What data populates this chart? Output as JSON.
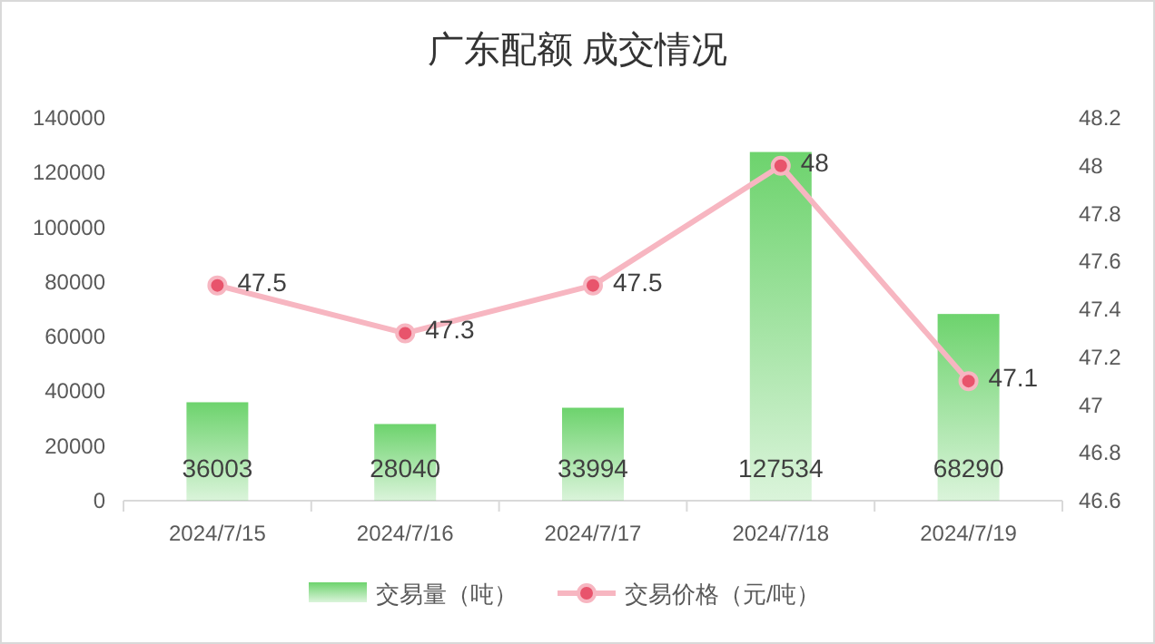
{
  "chart_data": {
    "type": "bar",
    "title": "广东配额 成交情况",
    "categories": [
      "2024/7/15",
      "2024/7/16",
      "2024/7/17",
      "2024/7/18",
      "2024/7/19"
    ],
    "series": [
      {
        "name": "交易量（吨）",
        "color": "#6dd36d",
        "values": [
          36003,
          28040,
          33994,
          127534,
          68290
        ]
      },
      {
        "name": "交易价格（元/吨）",
        "type": "line",
        "axis": "y2",
        "color": "#f7b6c1",
        "values": [
          47.5,
          47.3,
          47.5,
          48,
          47.1
        ]
      }
    ],
    "ylim": [
      0,
      140000
    ],
    "yticks": [
      0,
      20000,
      40000,
      60000,
      80000,
      100000,
      120000,
      140000
    ],
    "y2lim": [
      46.6,
      48.2
    ],
    "y2ticks": [
      46.6,
      46.8,
      47,
      47.2,
      47.4,
      47.6,
      47.8,
      48,
      48.2
    ],
    "data_labels": true,
    "legend": "bottom",
    "marker": "circle",
    "line_style": "solid"
  }
}
